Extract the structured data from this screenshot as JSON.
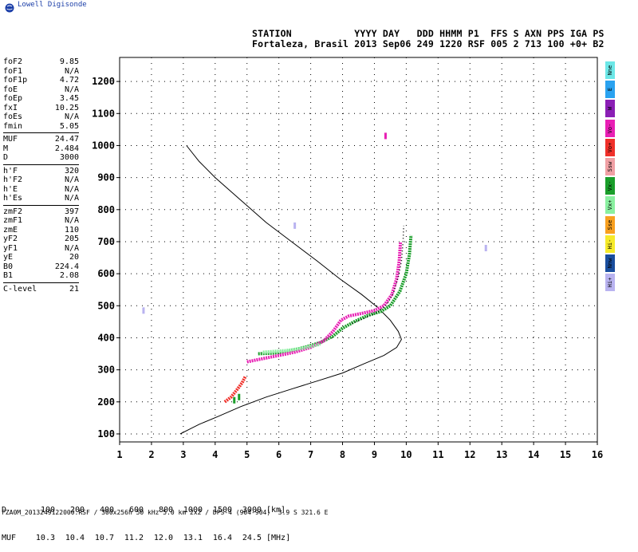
{
  "header": {
    "logo_text": "Lowell Digisonde",
    "line1": "STATION           YYYY DAY   DDD HHMM P1  FFS S AXN PPS IGA PS",
    "line2": "Fortaleza, Brasil 2013 Sep06 249 1220 RSF 005 2 713 100 +0+ B2"
  },
  "params": [
    {
      "label": "foF2",
      "value": "9.85"
    },
    {
      "label": "foF1",
      "value": "N/A"
    },
    {
      "label": "foF1p",
      "value": "4.72"
    },
    {
      "label": "foE",
      "value": "N/A"
    },
    {
      "label": "foEp",
      "value": "3.45"
    },
    {
      "label": "fxI",
      "value": "10.25"
    },
    {
      "label": "foEs",
      "value": "N/A"
    },
    {
      "label": "fmin",
      "value": "5.05"
    },
    {
      "sep": true
    },
    {
      "label": "MUF",
      "value": "24.47"
    },
    {
      "label": "M",
      "value": "2.484"
    },
    {
      "label": "D",
      "value": "3000"
    },
    {
      "sep": true
    },
    {
      "label": "h'F",
      "value": "320"
    },
    {
      "label": "h'F2",
      "value": "N/A"
    },
    {
      "label": "h'E",
      "value": "N/A"
    },
    {
      "label": "h'Es",
      "value": "N/A"
    },
    {
      "sep": true
    },
    {
      "label": "zmF2",
      "value": "397"
    },
    {
      "label": "zmF1",
      "value": "N/A"
    },
    {
      "label": "zmE",
      "value": "110"
    },
    {
      "label": "yF2",
      "value": "205"
    },
    {
      "label": "yF1",
      "value": "N/A"
    },
    {
      "label": "yE",
      "value": "20"
    },
    {
      "label": "B0",
      "value": "224.4"
    },
    {
      "label": "B1",
      "value": "2.08"
    },
    {
      "sep": true
    },
    {
      "label": "C-level",
      "value": "21"
    }
  ],
  "legend": [
    {
      "label": "Nne",
      "color": "#6ce7e7"
    },
    {
      "label": "E",
      "color": "#2aa2f0"
    },
    {
      "label": "W",
      "color": "#8b1fb5"
    },
    {
      "label": "Vo-",
      "color": "#e81fb4"
    },
    {
      "label": "Vo+",
      "color": "#f0302a"
    },
    {
      "label": "Ssw",
      "color": "#f0a0a4"
    },
    {
      "label": "Vx-",
      "color": "#1a9e2a"
    },
    {
      "label": "Vx+",
      "color": "#8af0a0"
    },
    {
      "label": "Sse",
      "color": "#f8a020"
    },
    {
      "label": "Hi-",
      "color": "#f6ea2a"
    },
    {
      "label": "Nnw",
      "color": "#1a4e9e"
    },
    {
      "label": "Hi+",
      "color": "#b9b3f0"
    }
  ],
  "footer": {
    "d_label": "D",
    "d_values": [
      "100",
      "200",
      "400",
      "600",
      "800",
      "1000",
      "1500",
      "3000"
    ],
    "d_unit": "[km]",
    "muf_label": "MUF",
    "muf_values": [
      "10.3",
      "10.4",
      "10.7",
      "11.2",
      "12.0",
      "13.1",
      "16.4",
      "24.5"
    ],
    "muf_unit": "[MHz]",
    "file_info": "FZA0M_2013249122000.RSF / 300x256h 50 kHz 5.0 km 2x2 / DPS-4 (904-904)  3.9 S 321.6 E"
  },
  "chart_data": {
    "type": "scatter",
    "xlim": [
      1,
      16
    ],
    "ylim": [
      75,
      1275
    ],
    "x_ticks": [
      1,
      2,
      3,
      4,
      5,
      6,
      7,
      8,
      9,
      10,
      11,
      12,
      13,
      14,
      15,
      16
    ],
    "y_ticks": [
      100,
      200,
      300,
      400,
      500,
      600,
      700,
      800,
      900,
      1000,
      1100,
      1200
    ],
    "grid": "dotted",
    "series": [
      {
        "color": "#000000",
        "style": "line",
        "points": [
          [
            3.1,
            1000
          ],
          [
            3.5,
            950
          ],
          [
            4.0,
            900
          ],
          [
            4.8,
            830
          ],
          [
            5.6,
            760
          ],
          [
            6.4,
            700
          ],
          [
            7.2,
            640
          ],
          [
            7.9,
            585
          ],
          [
            8.6,
            535
          ],
          [
            9.1,
            495
          ],
          [
            9.5,
            455
          ],
          [
            9.75,
            420
          ],
          [
            9.85,
            395
          ],
          [
            9.7,
            370
          ],
          [
            9.3,
            345
          ],
          [
            8.7,
            320
          ],
          [
            8.0,
            290
          ],
          [
            7.2,
            265
          ],
          [
            6.4,
            240
          ],
          [
            5.6,
            215
          ],
          [
            4.8,
            185
          ],
          [
            4.1,
            155
          ],
          [
            3.5,
            130
          ],
          [
            3.2,
            115
          ],
          [
            2.9,
            100
          ]
        ]
      },
      {
        "color": "#1a9e2a",
        "style": "thick",
        "points": [
          [
            5.35,
            350
          ],
          [
            5.8,
            352
          ],
          [
            6.3,
            358
          ],
          [
            6.8,
            370
          ],
          [
            7.3,
            385
          ],
          [
            7.7,
            405
          ],
          [
            8.0,
            430
          ],
          [
            8.4,
            452
          ],
          [
            8.8,
            470
          ],
          [
            9.2,
            482
          ],
          [
            9.5,
            500
          ],
          [
            9.8,
            545
          ],
          [
            10.0,
            600
          ],
          [
            10.1,
            660
          ],
          [
            10.15,
            720
          ]
        ]
      },
      {
        "color": "#e81fb4",
        "style": "thick",
        "points": [
          [
            5.0,
            325
          ],
          [
            5.5,
            335
          ],
          [
            6.0,
            345
          ],
          [
            6.5,
            355
          ],
          [
            7.0,
            370
          ],
          [
            7.4,
            390
          ],
          [
            7.7,
            420
          ],
          [
            7.95,
            455
          ],
          [
            8.2,
            468
          ],
          [
            8.6,
            476
          ],
          [
            9.0,
            485
          ],
          [
            9.3,
            500
          ],
          [
            9.55,
            535
          ],
          [
            9.7,
            585
          ],
          [
            9.78,
            640
          ],
          [
            9.82,
            700
          ]
        ]
      },
      {
        "color": "#f0302a",
        "style": "thick",
        "points": [
          [
            4.3,
            200
          ],
          [
            4.5,
            215
          ],
          [
            4.7,
            240
          ],
          [
            4.85,
            260
          ],
          [
            4.95,
            280
          ]
        ]
      },
      {
        "color": "#8af0a0",
        "style": "thick",
        "points": [
          [
            5.5,
            355
          ],
          [
            6.2,
            360
          ],
          [
            6.8,
            368
          ],
          [
            7.3,
            380
          ]
        ]
      },
      {
        "color": "#000000",
        "style": "dots",
        "points": [
          [
            8.3,
            445
          ],
          [
            8.7,
            462
          ],
          [
            9.1,
            480
          ],
          [
            9.4,
            505
          ],
          [
            9.6,
            540
          ],
          [
            9.75,
            590
          ],
          [
            9.85,
            640
          ],
          [
            9.9,
            700
          ],
          [
            9.92,
            750
          ]
        ]
      }
    ],
    "scatter": [
      {
        "x": 9.35,
        "y": 1030,
        "color": "#e81fb4"
      },
      {
        "x": 1.75,
        "y": 485,
        "color": "#b9b3f0"
      },
      {
        "x": 12.5,
        "y": 680,
        "color": "#b9b3f0"
      },
      {
        "x": 6.5,
        "y": 750,
        "color": "#b9b3f0"
      },
      {
        "x": 4.6,
        "y": 205,
        "color": "#1a9e2a"
      },
      {
        "x": 4.75,
        "y": 215,
        "color": "#1a9e2a"
      }
    ]
  }
}
